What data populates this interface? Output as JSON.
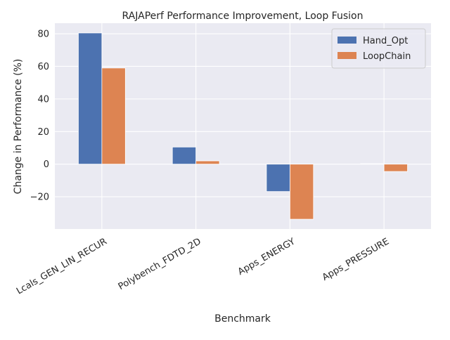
{
  "chart_data": {
    "type": "bar",
    "title": "RAJAPerf Performance Improvement, Loop Fusion",
    "xlabel": "Benchmark",
    "ylabel": "Change in Performance (%)",
    "categories": [
      "Lcals_GEN_LIN_RECUR",
      "Polybench_FDTD_2D",
      "Apps_ENERGY",
      "Apps_PRESSURE"
    ],
    "series": [
      {
        "name": "Hand_Opt",
        "values": [
          80.5,
          10.5,
          -16.8,
          0.3
        ],
        "color": "#4c72b0"
      },
      {
        "name": "LoopChain",
        "values": [
          59.0,
          2.0,
          -33.8,
          -4.5
        ],
        "color": "#dd8452"
      }
    ],
    "ylim": [
      -39.8,
      86.5
    ],
    "yticks": [
      -20,
      0,
      20,
      40,
      60,
      80
    ],
    "ytick_labels": [
      "−20",
      "0",
      "20",
      "40",
      "60",
      "80"
    ],
    "xtick_rotation_deg": -30,
    "grid": true,
    "legend_position": "top-right",
    "background_color": "#eaeaf2",
    "grid_color": "#ffffff"
  }
}
